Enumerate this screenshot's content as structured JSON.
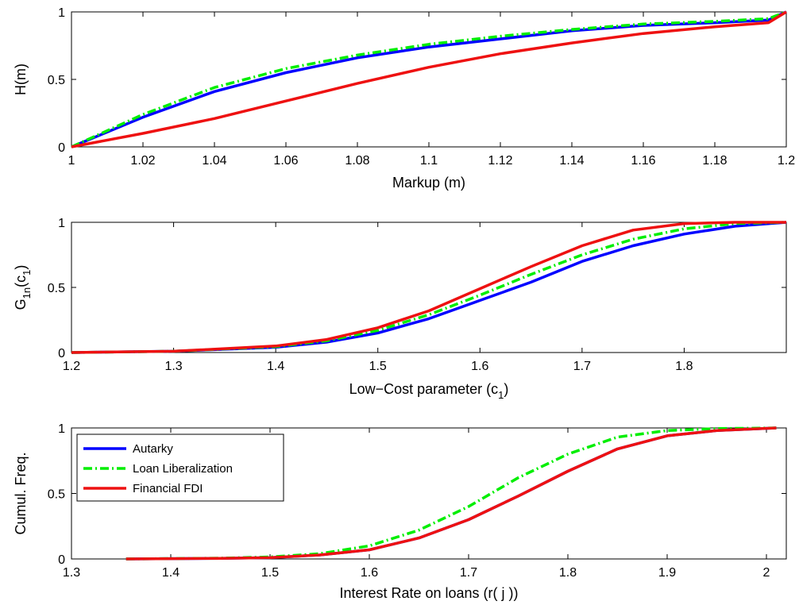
{
  "chart_data": [
    {
      "type": "line",
      "xlabel": "Markup (m)",
      "ylabel": "H(m)",
      "xlim": [
        1,
        1.2
      ],
      "ylim": [
        0,
        1
      ],
      "xticks": [
        "1",
        "1.02",
        "1.04",
        "1.06",
        "1.08",
        "1.1",
        "1.12",
        "1.14",
        "1.16",
        "1.18",
        "1.2"
      ],
      "yticks": [
        "0",
        "0.5",
        "1"
      ],
      "grid": false,
      "series": [
        {
          "key": "autarky",
          "color": "#0000ff",
          "dash": "solid",
          "x": [
            1.0,
            1.02,
            1.04,
            1.06,
            1.08,
            1.1,
            1.12,
            1.14,
            1.16,
            1.18,
            1.195,
            1.2
          ],
          "y": [
            0.0,
            0.22,
            0.41,
            0.55,
            0.66,
            0.74,
            0.8,
            0.86,
            0.9,
            0.92,
            0.94,
            1.0
          ]
        },
        {
          "key": "loan",
          "color": "#00ee00",
          "dash": "dashdot",
          "x": [
            1.0,
            1.02,
            1.04,
            1.06,
            1.08,
            1.1,
            1.12,
            1.14,
            1.16,
            1.18,
            1.195,
            1.2
          ],
          "y": [
            0.0,
            0.24,
            0.44,
            0.58,
            0.68,
            0.76,
            0.82,
            0.87,
            0.91,
            0.93,
            0.95,
            1.0
          ]
        },
        {
          "key": "fdi",
          "color": "#ee1111",
          "dash": "solid",
          "x": [
            1.0,
            1.02,
            1.04,
            1.06,
            1.08,
            1.1,
            1.12,
            1.14,
            1.16,
            1.18,
            1.195,
            1.2
          ],
          "y": [
            0.0,
            0.1,
            0.21,
            0.34,
            0.47,
            0.59,
            0.69,
            0.77,
            0.84,
            0.89,
            0.92,
            1.0
          ]
        }
      ]
    },
    {
      "type": "line",
      "xlabel": "Low−Cost parameter (c",
      "xlabel_sub": "1",
      "xlabel_end": ")",
      "ylabel": "G",
      "ylabel_sub": "1n",
      "ylabel_mid": "(c",
      "ylabel_sub2": "1",
      "ylabel_end": ")",
      "xlim": [
        1.2,
        1.9
      ],
      "ylim": [
        0,
        1
      ],
      "xticks": [
        "1.2",
        "1.3",
        "1.4",
        "1.5",
        "1.6",
        "1.7",
        "1.8"
      ],
      "xtick_values": [
        1.2,
        1.3,
        1.4,
        1.5,
        1.6,
        1.7,
        1.8
      ],
      "yticks": [
        "0",
        "0.5",
        "1"
      ],
      "grid": false,
      "series": [
        {
          "key": "autarky",
          "color": "#0000ff",
          "dash": "solid",
          "x": [
            1.2,
            1.3,
            1.4,
            1.45,
            1.5,
            1.55,
            1.6,
            1.65,
            1.7,
            1.75,
            1.8,
            1.85,
            1.9
          ],
          "y": [
            0.0,
            0.01,
            0.04,
            0.08,
            0.15,
            0.26,
            0.4,
            0.54,
            0.7,
            0.82,
            0.91,
            0.97,
            1.0
          ]
        },
        {
          "key": "loan",
          "color": "#00ee00",
          "dash": "dashdot",
          "x": [
            1.2,
            1.3,
            1.4,
            1.45,
            1.5,
            1.55,
            1.6,
            1.65,
            1.7,
            1.75,
            1.8,
            1.85,
            1.9
          ],
          "y": [
            0.0,
            0.01,
            0.045,
            0.09,
            0.17,
            0.29,
            0.44,
            0.6,
            0.75,
            0.87,
            0.95,
            0.99,
            1.0
          ]
        },
        {
          "key": "fdi",
          "color": "#ee1111",
          "dash": "solid",
          "x": [
            1.2,
            1.3,
            1.4,
            1.45,
            1.5,
            1.55,
            1.6,
            1.65,
            1.7,
            1.75,
            1.8,
            1.85,
            1.9
          ],
          "y": [
            0.0,
            0.01,
            0.05,
            0.1,
            0.19,
            0.32,
            0.49,
            0.66,
            0.82,
            0.94,
            0.99,
            1.0,
            1.0
          ]
        }
      ]
    },
    {
      "type": "line",
      "xlabel": "Interest Rate on loans (r( j ))",
      "ylabel": "Cumul. Freq.",
      "xlim": [
        1.3,
        2.02
      ],
      "ylim": [
        0,
        1
      ],
      "xticks": [
        "1.3",
        "1.4",
        "1.5",
        "1.6",
        "1.7",
        "1.8",
        "1.9",
        "2"
      ],
      "xtick_values": [
        1.3,
        1.4,
        1.5,
        1.6,
        1.7,
        1.8,
        1.9,
        2.0
      ],
      "yticks": [
        "0",
        "0.5",
        "1"
      ],
      "grid": false,
      "legend_position": "top-left",
      "legend": [
        "Autarky",
        "Loan Liberalization",
        "Financial FDI"
      ],
      "series": [
        {
          "key": "autarky",
          "color": "#0000ff",
          "dash": "solid",
          "x": [
            1.355,
            1.45,
            1.5,
            1.55,
            1.6,
            1.65,
            1.7,
            1.75,
            1.8,
            1.85,
            1.9,
            1.95,
            2.01
          ],
          "y": [
            0.0,
            0.005,
            0.01,
            0.03,
            0.07,
            0.16,
            0.3,
            0.48,
            0.67,
            0.84,
            0.94,
            0.98,
            1.0
          ]
        },
        {
          "key": "loan",
          "color": "#00ee00",
          "dash": "dashdot",
          "x": [
            1.355,
            1.45,
            1.5,
            1.55,
            1.6,
            1.65,
            1.7,
            1.75,
            1.8,
            1.85,
            1.9,
            1.95,
            2.01
          ],
          "y": [
            0.0,
            0.006,
            0.015,
            0.04,
            0.1,
            0.22,
            0.4,
            0.62,
            0.8,
            0.93,
            0.98,
            0.995,
            1.0
          ]
        },
        {
          "key": "fdi",
          "color": "#ee1111",
          "dash": "solid",
          "x": [
            1.355,
            1.45,
            1.5,
            1.55,
            1.6,
            1.65,
            1.7,
            1.75,
            1.8,
            1.85,
            1.9,
            1.95,
            2.01
          ],
          "y": [
            0.0,
            0.005,
            0.01,
            0.03,
            0.07,
            0.16,
            0.3,
            0.48,
            0.67,
            0.84,
            0.94,
            0.98,
            1.0
          ]
        }
      ]
    }
  ]
}
